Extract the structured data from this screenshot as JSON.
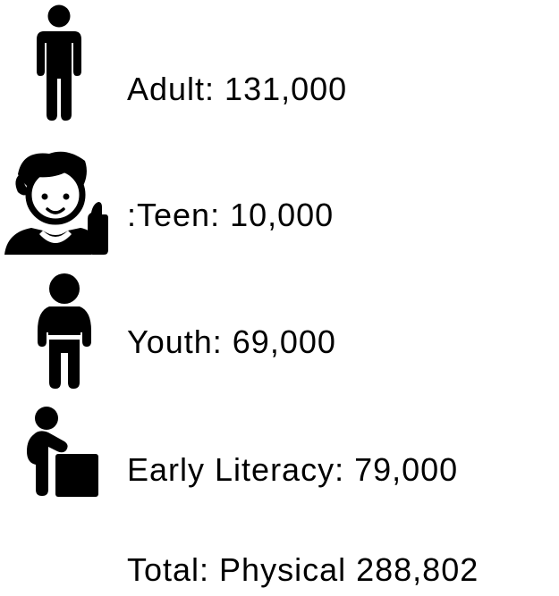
{
  "items": [
    {
      "label": "Adult: 131,000"
    },
    {
      "label": ":Teen: 10,000"
    },
    {
      "label": "Youth: 69,000"
    },
    {
      "label": "Early Literacy: 79,000"
    }
  ],
  "total": "Total: Physical 288,802"
}
